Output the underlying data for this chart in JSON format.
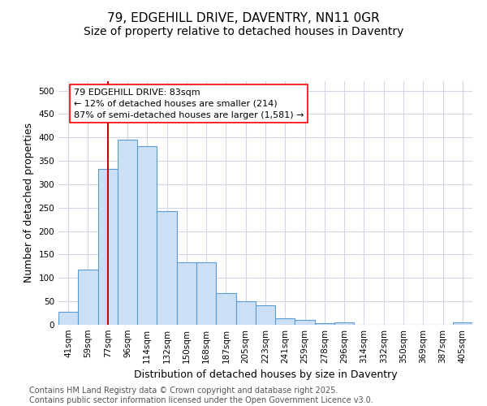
{
  "title": "79, EDGEHILL DRIVE, DAVENTRY, NN11 0GR",
  "subtitle": "Size of property relative to detached houses in Daventry",
  "xlabel": "Distribution of detached houses by size in Daventry",
  "ylabel": "Number of detached properties",
  "categories": [
    "41sqm",
    "59sqm",
    "77sqm",
    "96sqm",
    "114sqm",
    "132sqm",
    "150sqm",
    "168sqm",
    "187sqm",
    "205sqm",
    "223sqm",
    "241sqm",
    "259sqm",
    "278sqm",
    "296sqm",
    "314sqm",
    "332sqm",
    "350sqm",
    "369sqm",
    "387sqm",
    "405sqm"
  ],
  "bar_heights": [
    28,
    118,
    333,
    395,
    382,
    242,
    133,
    133,
    68,
    50,
    42,
    14,
    10,
    3,
    6,
    0,
    0,
    0,
    0,
    0,
    6
  ],
  "bar_fill_color": "#cce0f5",
  "bar_edge_color": "#5b9bd5",
  "annotation_line1": "79 EDGEHILL DRIVE: 83sqm",
  "annotation_line2": "← 12% of detached houses are smaller (214)",
  "annotation_line3": "87% of semi-detached houses are larger (1,581) →",
  "vline_index": 2,
  "vline_color": "#cc0000",
  "ylim": [
    0,
    520
  ],
  "yticks": [
    0,
    50,
    100,
    150,
    200,
    250,
    300,
    350,
    400,
    450,
    500
  ],
  "background_color": "#ffffff",
  "grid_color": "#d0d8e8",
  "footer": "Contains HM Land Registry data © Crown copyright and database right 2025.\nContains public sector information licensed under the Open Government Licence v3.0.",
  "title_fontsize": 11,
  "subtitle_fontsize": 10,
  "xlabel_fontsize": 9,
  "ylabel_fontsize": 9,
  "tick_fontsize": 7.5,
  "annotation_fontsize": 8,
  "footer_fontsize": 7
}
